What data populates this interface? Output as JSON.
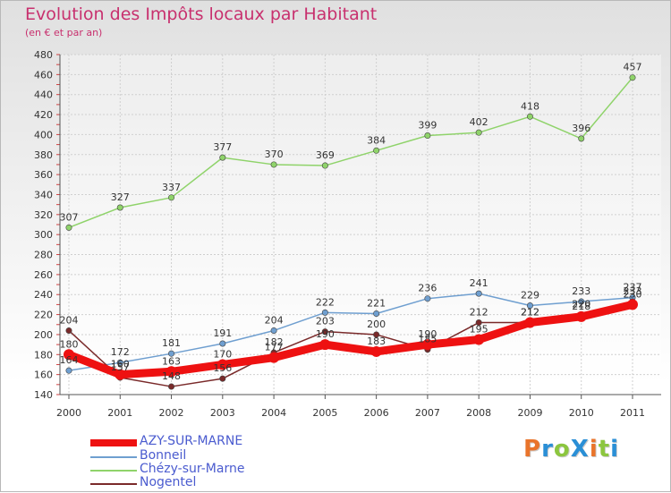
{
  "title": "Evolution des Impôts locaux par Habitant",
  "subtitle": "(en € et par an)",
  "logo": {
    "text": "ProXiti",
    "colors": [
      "#e9742b",
      "#2a8fd6",
      "#8cc63f",
      "#2a8fd6",
      "#e9742b",
      "#8cc63f",
      "#2a8fd6"
    ]
  },
  "chart_data": {
    "type": "line",
    "title": "Evolution des Impôts locaux par Habitant",
    "subtitle": "(en € et par an)",
    "xlabel": "",
    "ylabel": "",
    "x": [
      "2000",
      "2001",
      "2002",
      "2003",
      "2004",
      "2005",
      "2006",
      "2007",
      "2008",
      "2009",
      "2010",
      "2011"
    ],
    "ylim": [
      140,
      480
    ],
    "yticks": [
      140,
      160,
      180,
      200,
      220,
      240,
      260,
      280,
      300,
      320,
      340,
      360,
      380,
      400,
      420,
      440,
      460,
      480
    ],
    "grid": true,
    "legend": "bottom-left",
    "series": [
      {
        "name": "AZY-SUR-MARNE",
        "color": "#ee1111",
        "values": [
          180,
          160,
          163,
          170,
          177,
          190,
          183,
          190,
          195,
          212,
          218,
          230
        ]
      },
      {
        "name": "Bonneil",
        "color": "#6f9fd0",
        "values": [
          164,
          172,
          181,
          191,
          204,
          222,
          221,
          236,
          241,
          229,
          233,
          237
        ]
      },
      {
        "name": "Chézy-sur-Marne",
        "color": "#8fd36a",
        "values": [
          307,
          327,
          337,
          377,
          370,
          369,
          384,
          399,
          402,
          418,
          396,
          457
        ]
      },
      {
        "name": "Nogentel",
        "color": "#7a2a2a",
        "values": [
          204,
          157,
          148,
          156,
          182,
          203,
          200,
          185,
          212,
          212,
          220,
          233
        ]
      }
    ]
  }
}
